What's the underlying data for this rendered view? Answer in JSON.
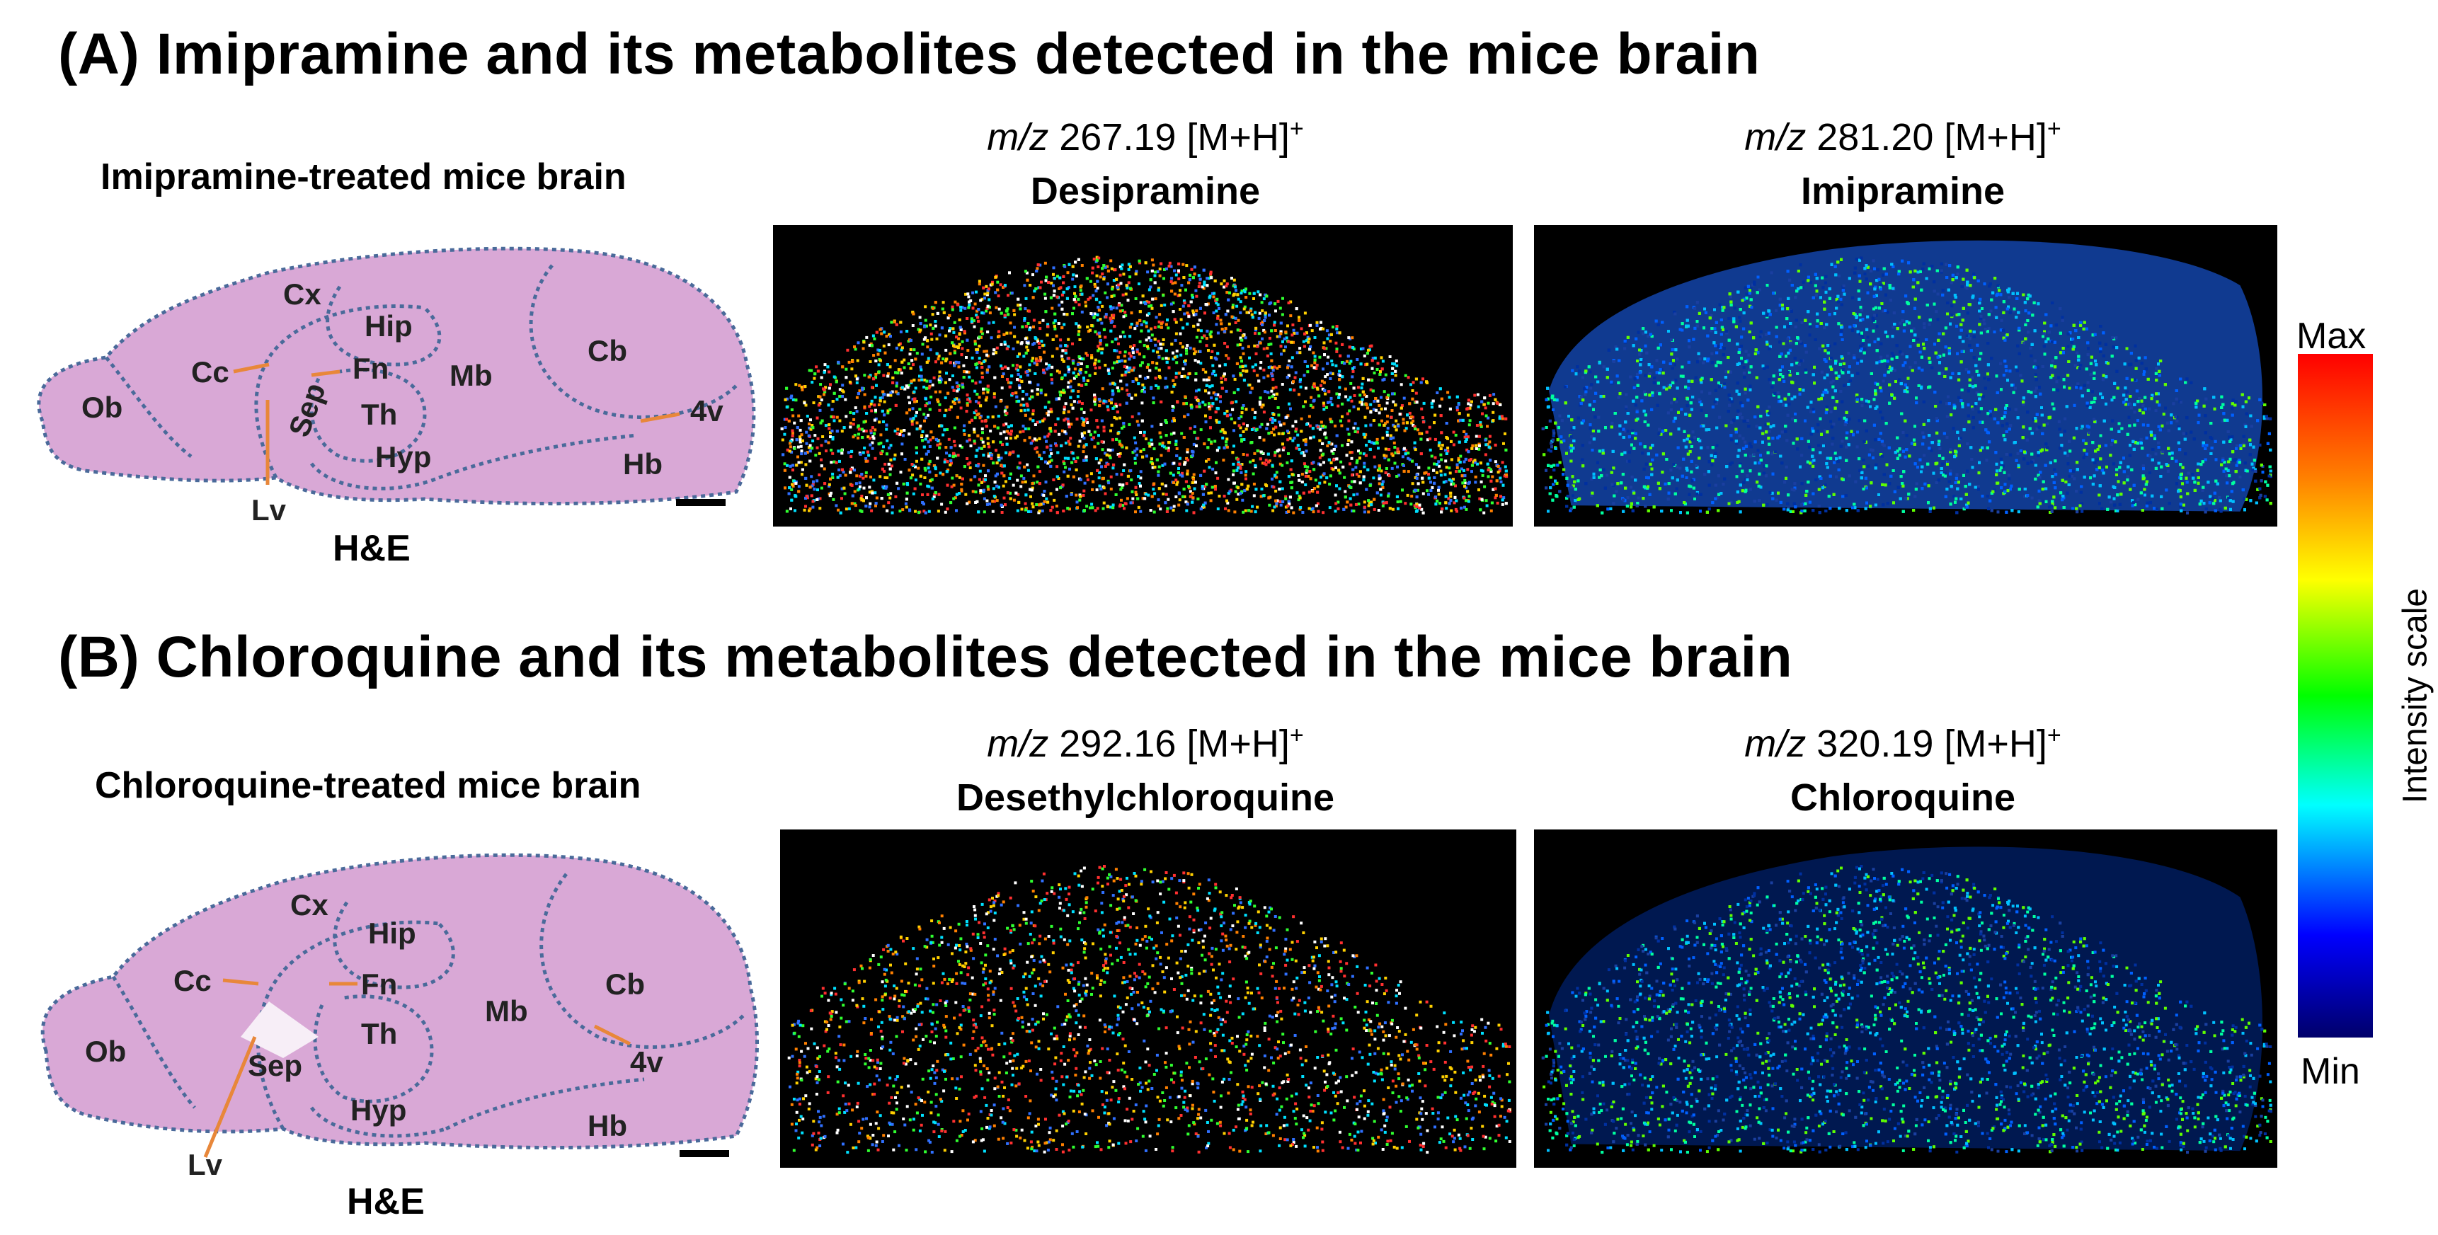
{
  "section_a": {
    "title": "(A) Imipramine and its metabolites detected in the mice brain",
    "he_caption": "Imipramine-treated mice brain",
    "he_label": "H&E",
    "regions": [
      "Cx",
      "Hip",
      "Cc",
      "Fn",
      "Mb",
      "Cb",
      "Ob",
      "Sep",
      "Th",
      "4v",
      "Hyp",
      "Hb",
      "Lv"
    ],
    "panels": [
      {
        "mz_prefix": "m/z",
        "mz_value": "267.19 [M+H]",
        "mz_sup": "+",
        "compound": "Desipramine"
      },
      {
        "mz_prefix": "m/z",
        "mz_value": "281.20 [M+H]",
        "mz_sup": "+",
        "compound": "Imipramine"
      }
    ]
  },
  "section_b": {
    "title": "(B) Chloroquine and its metabolites detected in the mice brain",
    "he_caption": "Chloroquine-treated mice brain",
    "he_label": "H&E",
    "regions": [
      "Cx",
      "Hip",
      "Cc",
      "Fn",
      "Mb",
      "Cb",
      "Ob",
      "Sep",
      "Th",
      "4v",
      "Hyp",
      "Hb",
      "Lv"
    ],
    "panels": [
      {
        "mz_prefix": "m/z",
        "mz_value": "292.16 [M+H]",
        "mz_sup": "+",
        "compound": "Desethylchloroquine"
      },
      {
        "mz_prefix": "m/z",
        "mz_value": "320.19 [M+H]",
        "mz_sup": "+",
        "compound": "Chloroquine"
      }
    ]
  },
  "colorbar": {
    "max_label": "Max",
    "min_label": "Min",
    "axis_label": "Intensity scale",
    "colors": [
      "#ff0000",
      "#ff7f00",
      "#ffff00",
      "#00ff00",
      "#00ffff",
      "#0000ff",
      "#00006a"
    ]
  },
  "colors": {
    "he_tissue": "#d9a8d6",
    "region_outline": "#4a6a9a",
    "pointer_line": "#e8873a",
    "panel_background": "#000000"
  }
}
